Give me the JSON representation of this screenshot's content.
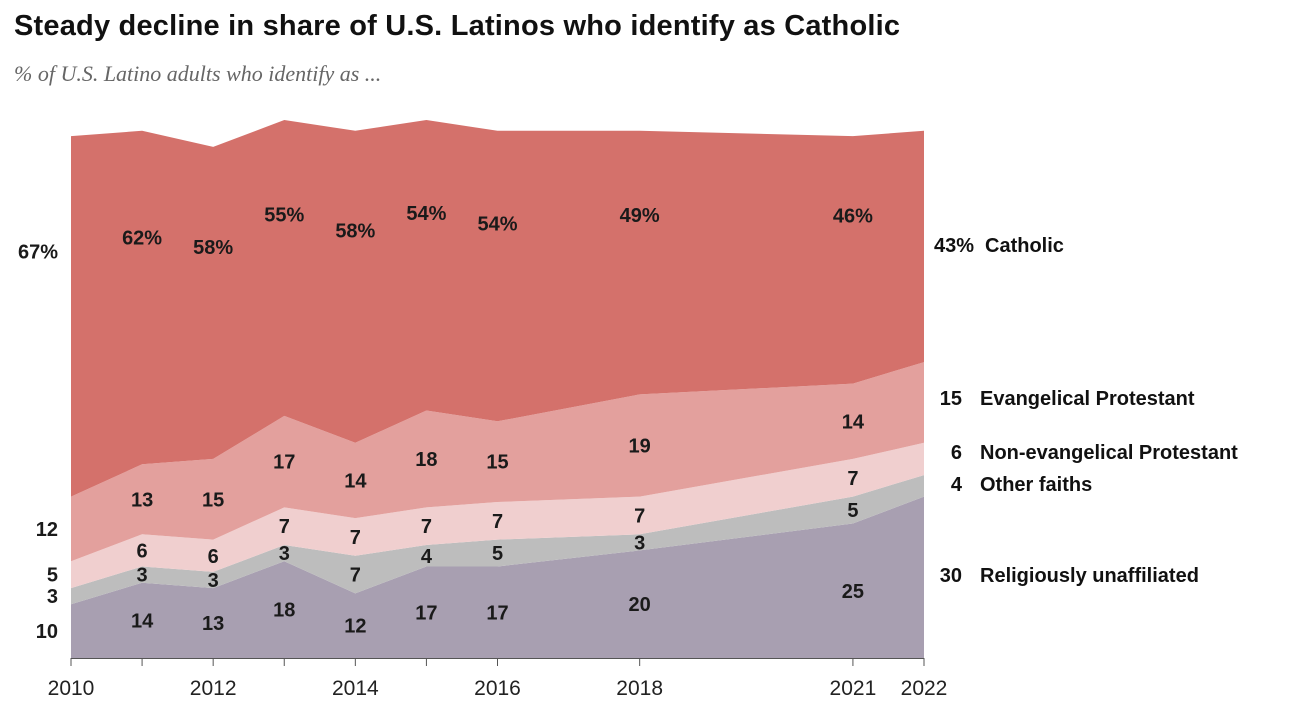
{
  "title": "Steady decline in share of U.S. Latinos who identify as Catholic",
  "subtitle": "% of U.S. Latino adults who identify as ...",
  "colors": {
    "catholic": "#d4716b",
    "evangelical": "#e3a09d",
    "non_evangelical": "#f0cfcf",
    "other": "#bdbdbd",
    "unaffiliated": "#a89fb1",
    "axis": "#555555"
  },
  "chart_data": {
    "type": "area",
    "stacked": true,
    "title": "Steady decline in share of U.S. Latinos who identify as Catholic",
    "subtitle": "% of U.S. Latino adults who identify as ...",
    "x": [
      2010,
      2011,
      2012,
      2013,
      2014,
      2015,
      2016,
      2018,
      2021,
      2022
    ],
    "xticks": [
      "2010",
      "2012",
      "2014",
      "2016",
      "2018",
      "2021",
      "2022"
    ],
    "xlim": [
      2010,
      2022
    ],
    "ylim": [
      0,
      100
    ],
    "series": [
      {
        "key": "unaffiliated",
        "name": "Religiously unaffiliated",
        "values": [
          10,
          14,
          13,
          18,
          12,
          17,
          17,
          20,
          25,
          30
        ]
      },
      {
        "key": "other",
        "name": "Other faiths",
        "values": [
          3,
          3,
          3,
          3,
          7,
          4,
          5,
          3,
          5,
          4
        ]
      },
      {
        "key": "non_evangelical",
        "name": "Non-evangelical Protestant",
        "values": [
          5,
          6,
          6,
          7,
          7,
          7,
          7,
          7,
          7,
          6
        ]
      },
      {
        "key": "evangelical",
        "name": "Evangelical Protestant",
        "values": [
          12,
          13,
          15,
          17,
          14,
          18,
          15,
          19,
          14,
          15
        ]
      },
      {
        "key": "catholic",
        "name": "Catholic",
        "values": [
          67,
          62,
          58,
          55,
          58,
          54,
          54,
          49,
          46,
          43
        ]
      }
    ],
    "point_labels": {
      "unaffiliated": [
        "10",
        "14",
        "13",
        "18",
        "12",
        "17",
        "17",
        "20",
        "25"
      ],
      "other": [
        "3",
        "3",
        "3",
        "3",
        "7",
        "4",
        "5",
        "3",
        "5"
      ],
      "non_evangelical": [
        "5",
        "6",
        "6",
        "7",
        "7",
        "7",
        "7",
        "7",
        "7"
      ],
      "evangelical": [
        "12",
        "13",
        "15",
        "17",
        "14",
        "18",
        "15",
        "19",
        "14"
      ],
      "catholic": [
        "67%",
        "62%",
        "58%",
        "55%",
        "58%",
        "54%",
        "54%",
        "49%",
        "46%"
      ]
    },
    "end_labels": [
      {
        "key": "catholic",
        "value": "43%",
        "name": "Catholic"
      },
      {
        "key": "evangelical",
        "value": "15",
        "name": "Evangelical Protestant"
      },
      {
        "key": "non_evangelical",
        "value": "6",
        "name": "Non-evangelical Protestant"
      },
      {
        "key": "other",
        "value": "4",
        "name": "Other faiths"
      },
      {
        "key": "unaffiliated",
        "value": "30",
        "name": "Religiously unaffiliated"
      }
    ]
  }
}
